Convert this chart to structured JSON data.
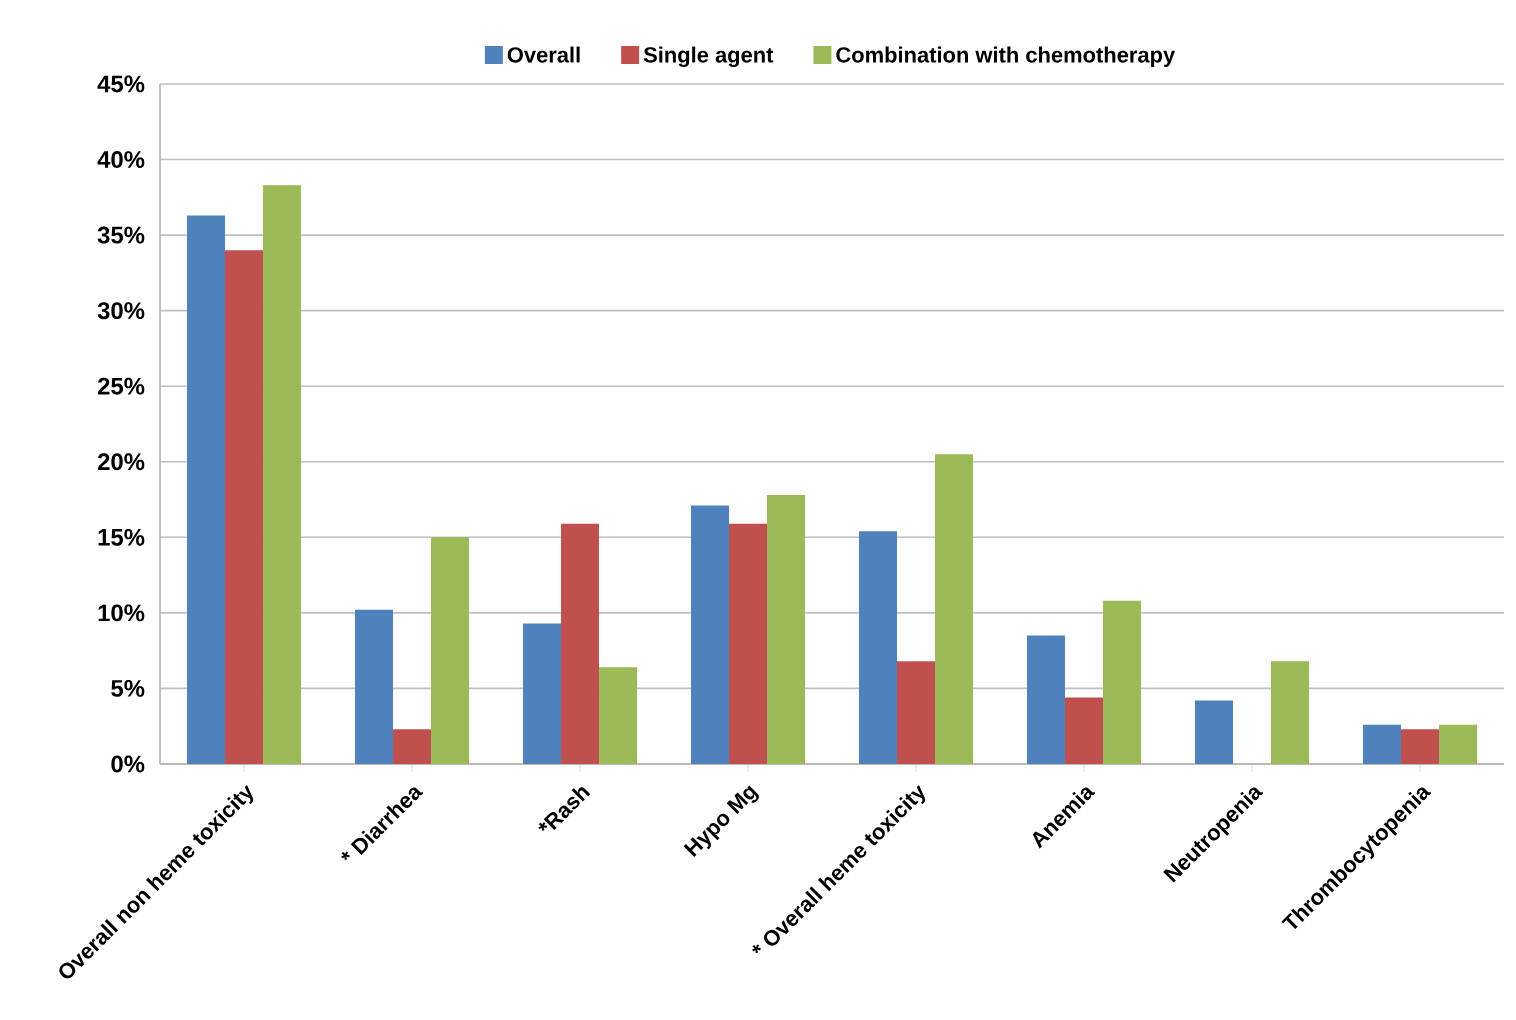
{
  "chart_data": {
    "type": "bar",
    "categories": [
      "Overall non heme toxicity",
      "*  Diarrhea",
      "*Rash",
      "Hypo Mg",
      "* Overall heme toxicity",
      "Anemia",
      "Neutropenia",
      "Thrombocytopenia"
    ],
    "series": [
      {
        "name": "Overall",
        "color": "#4f81bd",
        "values": [
          36.3,
          10.2,
          9.3,
          17.1,
          15.4,
          8.5,
          4.2,
          2.6
        ]
      },
      {
        "name": "Single agent",
        "color": "#c0504d",
        "values": [
          34.0,
          2.3,
          15.9,
          15.9,
          6.8,
          4.4,
          null,
          2.3
        ]
      },
      {
        "name": "Combination with chemotherapy",
        "color": "#9bbb59",
        "values": [
          38.3,
          15.0,
          6.4,
          17.8,
          20.5,
          10.8,
          6.8,
          2.6
        ]
      }
    ],
    "ylim": [
      0,
      45
    ],
    "yticks": [
      {
        "value": 0,
        "label": "0%"
      },
      {
        "value": 5,
        "label": "5%"
      },
      {
        "value": 10,
        "label": "10%"
      },
      {
        "value": 15,
        "label": "15%"
      },
      {
        "value": 20,
        "label": "20%"
      },
      {
        "value": 25,
        "label": "25%"
      },
      {
        "value": 30,
        "label": "30%"
      },
      {
        "value": 35,
        "label": "35%"
      },
      {
        "value": 40,
        "label": "40%"
      },
      {
        "value": 45,
        "label": "45%"
      }
    ],
    "grid": "y",
    "legend": "top"
  }
}
